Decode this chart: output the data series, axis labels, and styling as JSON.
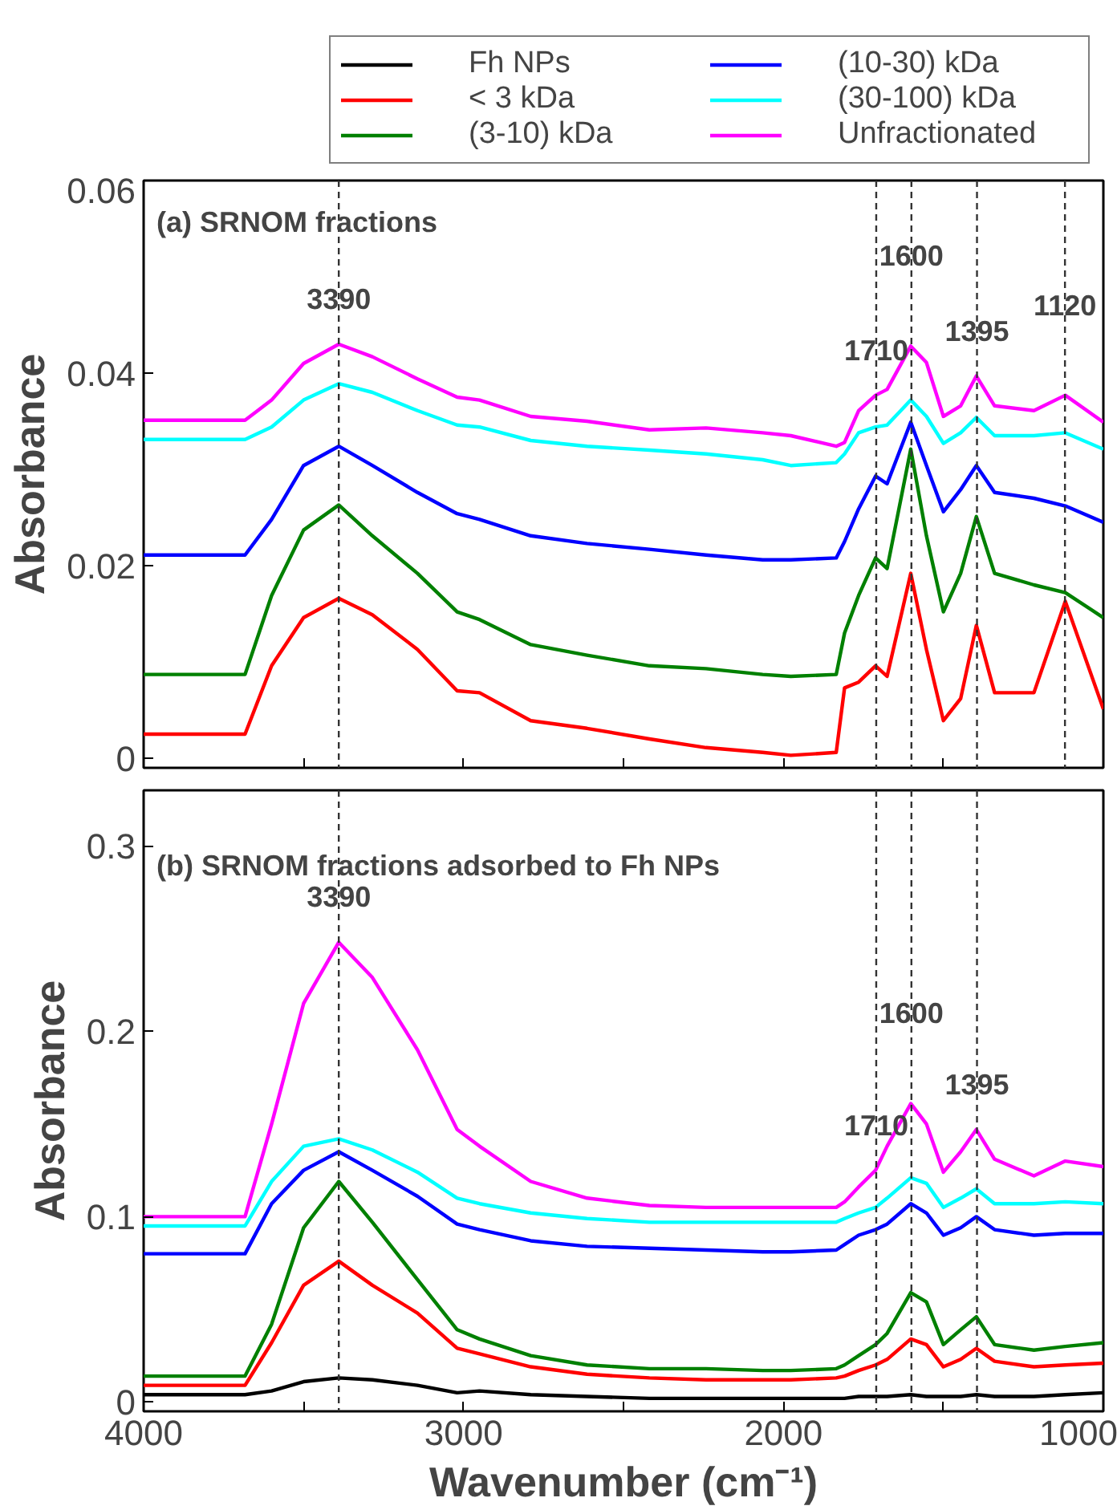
{
  "chart_data": [
    {
      "type": "line",
      "title": "(a) SRNOM fractions",
      "ylabel": "Absorbance",
      "tick_labels": "y",
      "grid": false,
      "x": [
        4000,
        3683,
        3600,
        3500,
        3390,
        3285,
        3144,
        3020,
        2950,
        2790,
        2614,
        2419,
        2242,
        2065,
        1977,
        1835,
        1809,
        1765,
        1712,
        1676,
        1602,
        1553,
        1500,
        1446,
        1397,
        1340,
        1217,
        1119,
        1000
      ],
      "xlim": [
        4000,
        1000
      ],
      "xticks": [
        4000,
        {
          "value": 3500,
          "label": null
        },
        3000,
        {
          "value": 2500,
          "label": null
        },
        2000,
        {
          "value": 1500,
          "label": null
        },
        1000
      ],
      "ylim": [
        -0.001,
        0.06
      ],
      "yticks": [
        0,
        0.02,
        0.04,
        0.06
      ],
      "series": [
        {
          "color": "#ff0000",
          "values": [
            0.0025,
            0.0025,
            0.0096,
            0.0146,
            0.0166,
            0.0149,
            0.0113,
            0.007,
            0.0068,
            0.0039,
            0.0031,
            0.002,
            0.0011,
            0.0006,
            0.0003,
            0.0006,
            0.0073,
            0.0079,
            0.0096,
            0.0085,
            0.0192,
            0.0113,
            0.0039,
            0.0062,
            0.0138,
            0.0068,
            0.0068,
            0.0163,
            0.0051
          ]
        },
        {
          "color": "#008000",
          "values": [
            0.0087,
            0.0087,
            0.0169,
            0.0237,
            0.0263,
            0.0231,
            0.0192,
            0.0152,
            0.0144,
            0.0118,
            0.0107,
            0.0096,
            0.0093,
            0.0087,
            0.0085,
            0.0087,
            0.013,
            0.0169,
            0.0208,
            0.0197,
            0.0321,
            0.0231,
            0.0152,
            0.0192,
            0.0251,
            0.0192,
            0.018,
            0.0172,
            0.0146
          ]
        },
        {
          "color": "#0000ff",
          "values": [
            0.0211,
            0.0211,
            0.0248,
            0.0304,
            0.0324,
            0.0304,
            0.0276,
            0.0254,
            0.0248,
            0.0231,
            0.0223,
            0.0217,
            0.0211,
            0.0206,
            0.0206,
            0.0208,
            0.0225,
            0.0259,
            0.0293,
            0.0285,
            0.0349,
            0.0304,
            0.0256,
            0.0279,
            0.0304,
            0.0276,
            0.027,
            0.0262,
            0.0245
          ]
        },
        {
          "color": "#00ffff",
          "values": [
            0.0331,
            0.0331,
            0.0344,
            0.0372,
            0.0389,
            0.038,
            0.0361,
            0.0346,
            0.0344,
            0.033,
            0.0324,
            0.032,
            0.0316,
            0.031,
            0.0304,
            0.0307,
            0.0316,
            0.0338,
            0.0344,
            0.0346,
            0.0372,
            0.0355,
            0.0327,
            0.0338,
            0.0354,
            0.0335,
            0.0335,
            0.0338,
            0.0321
          ]
        },
        {
          "color": "#ff00ff",
          "values": [
            0.0351,
            0.0351,
            0.0372,
            0.041,
            0.043,
            0.0417,
            0.0394,
            0.0375,
            0.0372,
            0.0355,
            0.035,
            0.0341,
            0.0343,
            0.0338,
            0.0335,
            0.0324,
            0.0328,
            0.0361,
            0.0377,
            0.0383,
            0.0428,
            0.0411,
            0.0355,
            0.0366,
            0.0397,
            0.0366,
            0.0361,
            0.0377,
            0.0349
          ]
        }
      ],
      "ref_lines": [
        {
          "axis": "x",
          "value": 3390,
          "label": "3390",
          "color": "#333333",
          "line_style": "dashed"
        },
        {
          "axis": "x",
          "value": 1710,
          "label": "1710",
          "color": "#333333",
          "line_style": "dashed"
        },
        {
          "axis": "x",
          "value": 1600,
          "label": "1600",
          "color": "#333333",
          "line_style": "dashed"
        },
        {
          "axis": "x",
          "value": 1395,
          "label": "1395",
          "color": "#333333",
          "line_style": "dashed"
        },
        {
          "axis": "x",
          "value": 1120,
          "label": "1120",
          "color": "#333333",
          "line_style": "dashed"
        }
      ]
    },
    {
      "type": "line",
      "title": "(b) SRNOM fractions adsorbed to Fh NPs",
      "xlabel": "Wavenumber (cm⁻¹)",
      "ylabel": "Absorbance",
      "legend": "top",
      "grid": false,
      "x": [
        4000,
        3683,
        3600,
        3500,
        3390,
        3285,
        3144,
        3020,
        2950,
        2790,
        2614,
        2419,
        2242,
        2065,
        1977,
        1835,
        1809,
        1765,
        1712,
        1676,
        1602,
        1553,
        1500,
        1446,
        1397,
        1340,
        1217,
        1119,
        1000
      ],
      "xlim": [
        4000,
        1000
      ],
      "xticks": [
        4000,
        {
          "value": 3500,
          "label": null
        },
        3000,
        {
          "value": 2500,
          "label": null
        },
        2000,
        {
          "value": 1500,
          "label": null
        },
        1000
      ],
      "ylim": [
        -0.005,
        0.33
      ],
      "yticks": [
        0,
        0.1,
        0.2,
        0.3
      ],
      "series": [
        {
          "name": "Fh NPs",
          "color": "#000000",
          "values": [
            0.004,
            0.004,
            0.006,
            0.011,
            0.013,
            0.012,
            0.009,
            0.005,
            0.006,
            0.004,
            0.003,
            0.002,
            0.002,
            0.002,
            0.002,
            0.002,
            0.002,
            0.003,
            0.003,
            0.003,
            0.004,
            0.003,
            0.003,
            0.003,
            0.004,
            0.003,
            0.003,
            0.004,
            0.005
          ]
        },
        {
          "name": "< 3 kDa",
          "color": "#ff0000",
          "values": [
            0.009,
            0.009,
            0.032,
            0.063,
            0.076,
            0.063,
            0.048,
            0.029,
            0.026,
            0.019,
            0.015,
            0.013,
            0.012,
            0.012,
            0.012,
            0.013,
            0.014,
            0.017,
            0.02,
            0.023,
            0.034,
            0.031,
            0.019,
            0.023,
            0.029,
            0.022,
            0.019,
            0.02,
            0.021
          ]
        },
        {
          "name": "(3-10) kDa",
          "color": "#008000",
          "values": [
            0.014,
            0.014,
            0.042,
            0.094,
            0.119,
            0.097,
            0.066,
            0.039,
            0.034,
            0.025,
            0.02,
            0.018,
            0.018,
            0.017,
            0.017,
            0.018,
            0.02,
            0.025,
            0.031,
            0.037,
            0.059,
            0.054,
            0.031,
            0.039,
            0.046,
            0.031,
            0.028,
            0.03,
            0.032
          ]
        },
        {
          "name": "(10-30) kDa",
          "color": "#0000ff",
          "values": [
            0.08,
            0.08,
            0.107,
            0.125,
            0.135,
            0.125,
            0.111,
            0.096,
            0.093,
            0.087,
            0.084,
            0.083,
            0.082,
            0.081,
            0.081,
            0.082,
            0.085,
            0.09,
            0.093,
            0.096,
            0.107,
            0.102,
            0.09,
            0.094,
            0.1,
            0.093,
            0.09,
            0.091,
            0.091
          ]
        },
        {
          "name": "(30-100) kDa",
          "color": "#00ffff",
          "values": [
            0.095,
            0.095,
            0.119,
            0.138,
            0.142,
            0.136,
            0.124,
            0.11,
            0.107,
            0.102,
            0.099,
            0.097,
            0.097,
            0.097,
            0.097,
            0.097,
            0.099,
            0.102,
            0.105,
            0.11,
            0.121,
            0.118,
            0.105,
            0.11,
            0.115,
            0.107,
            0.107,
            0.108,
            0.107
          ]
        },
        {
          "name": "Unfractionated",
          "color": "#ff00ff",
          "values": [
            0.1,
            0.1,
            0.15,
            0.215,
            0.248,
            0.229,
            0.19,
            0.147,
            0.138,
            0.119,
            0.11,
            0.106,
            0.105,
            0.105,
            0.105,
            0.105,
            0.108,
            0.116,
            0.125,
            0.138,
            0.161,
            0.15,
            0.124,
            0.135,
            0.147,
            0.131,
            0.122,
            0.13,
            0.127
          ]
        }
      ],
      "ref_lines": [
        {
          "axis": "x",
          "value": 3390,
          "label": "3390",
          "color": "#333333",
          "line_style": "dashed"
        },
        {
          "axis": "x",
          "value": 1710,
          "label": "1710",
          "color": "#333333",
          "line_style": "dashed"
        },
        {
          "axis": "x",
          "value": 1600,
          "label": "1600",
          "color": "#333333",
          "line_style": "dashed"
        },
        {
          "axis": "x",
          "value": 1395,
          "label": "1395",
          "color": "#333333",
          "line_style": "dashed"
        }
      ]
    }
  ]
}
